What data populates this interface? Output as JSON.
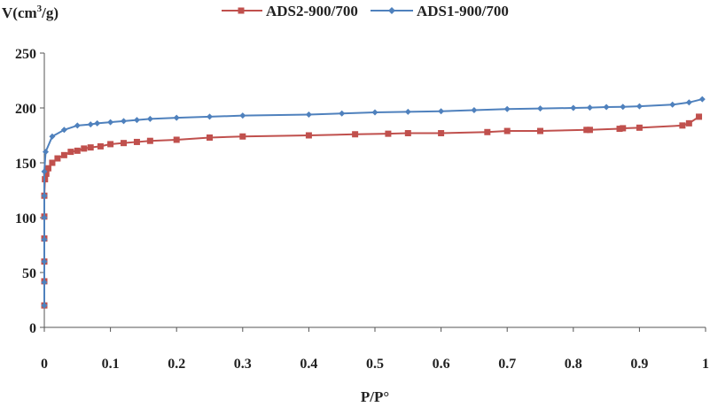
{
  "chart_data": {
    "type": "line",
    "title": "",
    "xlabel": "P/P°",
    "ylabel_main": "V(cm",
    "ylabel_sup": "3",
    "ylabel_tail": "/g)",
    "xlim": [
      0,
      1
    ],
    "ylim": [
      0,
      250
    ],
    "xticks": [
      0,
      0.1,
      0.2,
      0.3,
      0.4,
      0.5,
      0.6,
      0.7,
      0.8,
      0.9,
      1
    ],
    "xtick_labels": [
      "0",
      "0.1",
      "0.2",
      "0.3",
      "0.4",
      "0.5",
      "0.6",
      "0.7",
      "0.8",
      "0.9",
      "1"
    ],
    "yticks": [
      0,
      50,
      100,
      150,
      200,
      250
    ],
    "ytick_labels": [
      "0",
      "50",
      "100",
      "150",
      "200",
      "250"
    ],
    "grid": false,
    "legend_position": "top",
    "series": [
      {
        "name": "ADS2-900/700",
        "color": "#c0504d",
        "marker": "square",
        "x": [
          0.0,
          0.0,
          0.0,
          0.0,
          0.0,
          0.0,
          0.001,
          0.003,
          0.006,
          0.012,
          0.02,
          0.03,
          0.04,
          0.05,
          0.06,
          0.07,
          0.085,
          0.1,
          0.12,
          0.14,
          0.16,
          0.2,
          0.25,
          0.3,
          0.4,
          0.47,
          0.52,
          0.55,
          0.6,
          0.67,
          0.7,
          0.75,
          0.82,
          0.825,
          0.87,
          0.875,
          0.9,
          0.965,
          0.975,
          0.99
        ],
        "y": [
          20,
          42,
          60,
          81,
          101,
          120,
          135,
          140,
          145,
          150,
          154,
          157,
          160,
          161,
          163,
          164,
          165,
          167,
          168,
          169,
          170,
          171,
          173,
          174,
          175,
          176,
          176.5,
          177,
          177,
          178,
          179,
          179,
          180,
          180,
          181,
          181.5,
          182,
          184,
          186,
          192
        ]
      },
      {
        "name": "ADS1-900/700",
        "color": "#4f81bd",
        "marker": "diamond",
        "x": [
          0.0,
          0.0,
          0.0,
          0.0,
          0.0,
          0.0,
          0.0,
          0.002,
          0.012,
          0.03,
          0.05,
          0.07,
          0.08,
          0.1,
          0.12,
          0.14,
          0.16,
          0.2,
          0.25,
          0.3,
          0.4,
          0.45,
          0.5,
          0.55,
          0.6,
          0.65,
          0.7,
          0.75,
          0.8,
          0.825,
          0.85,
          0.875,
          0.9,
          0.95,
          0.975,
          0.995
        ],
        "y": [
          20,
          41,
          60,
          80,
          100,
          120,
          142,
          160,
          174,
          180,
          184,
          185,
          186,
          187,
          188,
          189,
          190,
          191,
          192,
          193,
          194,
          195,
          196,
          196.5,
          197,
          198,
          199,
          199.5,
          200,
          200.3,
          200.8,
          201,
          201.5,
          203,
          205,
          208
        ]
      }
    ]
  }
}
